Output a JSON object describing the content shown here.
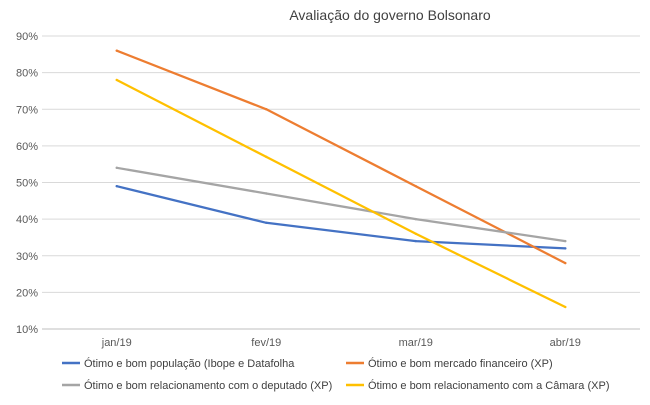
{
  "chart_data": {
    "type": "line",
    "title": "Avaliação do governo Bolsonaro",
    "categories": [
      "jan/19",
      "fev/19",
      "mar/19",
      "abr/19"
    ],
    "ylim": [
      10,
      90
    ],
    "yticks": [
      10,
      20,
      30,
      40,
      50,
      60,
      70,
      80,
      90
    ],
    "y_tick_format": "percent",
    "grid": true,
    "legend_position": "bottom",
    "series": [
      {
        "name": "Ótimo e bom população (Ibope e Datafolha",
        "values": [
          49,
          39,
          34,
          32
        ],
        "color": "#4472C4"
      },
      {
        "name": "Ótimo e bom mercado financeiro (XP)",
        "values": [
          86,
          70,
          49,
          28
        ],
        "color": "#ED7D31"
      },
      {
        "name": "Ótimo e bom relacionamento com o deputado (XP)",
        "values": [
          54,
          47,
          40,
          34
        ],
        "color": "#A5A5A5"
      },
      {
        "name": "Ótimo e bom relacionamento com a Câmara (XP)",
        "values": [
          78,
          57,
          36,
          16
        ],
        "color": "#FFC000"
      }
    ]
  }
}
